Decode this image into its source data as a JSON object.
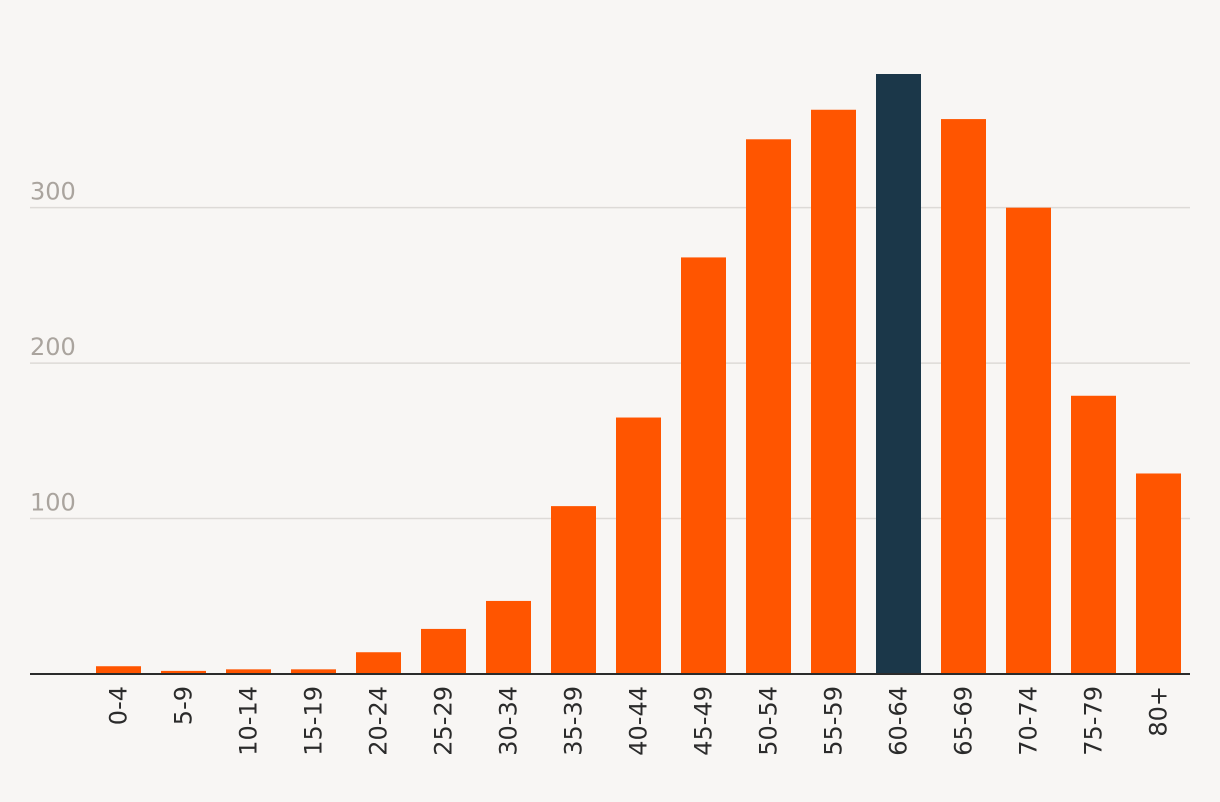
{
  "chart_data": {
    "type": "bar",
    "title": "",
    "xlabel": "",
    "ylabel": "",
    "categories": [
      "0-4",
      "5-9",
      "10-14",
      "15-19",
      "20-24",
      "25-29",
      "30-34",
      "35-39",
      "40-44",
      "45-49",
      "50-54",
      "55-59",
      "60-64",
      "65-69",
      "70-74",
      "75-79",
      "80+"
    ],
    "values": [
      5,
      2,
      3,
      3,
      14,
      29,
      47,
      108,
      165,
      268,
      344,
      363,
      386,
      357,
      300,
      179,
      129
    ],
    "highlight_category": "60-64",
    "ylim": [
      0,
      386
    ],
    "yticks": [
      100,
      200,
      300
    ],
    "ytick_labels": [
      "100",
      "200",
      "300"
    ],
    "grid": true,
    "colors": {
      "bar": "#ff5500",
      "highlight": "#1b3749",
      "grid": "#dddad7",
      "axis": "#2b2b2b",
      "background": "#f8f6f4"
    }
  }
}
